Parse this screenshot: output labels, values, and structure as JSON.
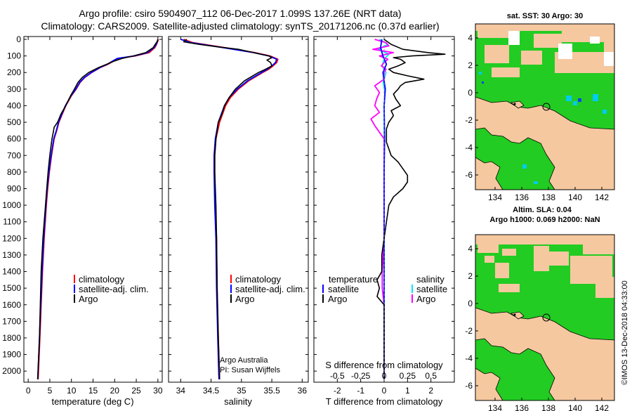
{
  "title": {
    "line1": "Argo profile: csiro 5904907_112 06-Dec-2017 1.099S 137.26E (NRT data)",
    "line2": "Climatology: CARS2009. Satellite-adjusted climatology: synTS_20171206.nc (0.37d earlier)"
  },
  "colors": {
    "climatology": "#ff0000",
    "satellite": "#0000ff",
    "argo": "#000000",
    "sal_sat": "#00e5ff",
    "sal_argo": "#ff00ff",
    "sea_green": "#22cc22",
    "land": "#f5c8a0",
    "cyan": "#00ccee",
    "blue": "#0044ff"
  },
  "depth_axis": {
    "min": 0,
    "max": 2050,
    "ticks": [
      0,
      100,
      200,
      300,
      400,
      500,
      600,
      700,
      800,
      900,
      1000,
      1100,
      1200,
      1300,
      1400,
      1500,
      1600,
      1700,
      1800,
      1900,
      2000
    ]
  },
  "legend": {
    "climatology": "climatology",
    "satellite_adj": "satellite-adj. clim.",
    "argo": "Argo",
    "temperature": "temperature",
    "salinity": "salinity",
    "satellite": "satellite"
  },
  "credit": {
    "line1": "Argo Australia",
    "line2": "PI: Susan Wijffels"
  },
  "chart_data": [
    {
      "type": "line",
      "id": "temperature",
      "xlabel": "temperature (deg C)",
      "xlim": [
        -1,
        31
      ],
      "xticks": [
        0,
        5,
        10,
        15,
        20,
        25,
        30
      ],
      "series": [
        {
          "name": "climatology",
          "depth": [
            0,
            10,
            30,
            50,
            80,
            100,
            115,
            130,
            150,
            170,
            200,
            230,
            260,
            300,
            340,
            400,
            450,
            500,
            550,
            600,
            700,
            800,
            900,
            1000,
            1200,
            1400,
            1600,
            1800,
            2050
          ],
          "values": [
            30.1,
            30.0,
            29.7,
            29.3,
            28.0,
            24.8,
            20.8,
            19.8,
            18.5,
            16.7,
            14.7,
            13.1,
            12.0,
            11.1,
            10.0,
            8.7,
            7.9,
            7.1,
            6.6,
            6.0,
            5.4,
            4.9,
            4.5,
            4.2,
            3.7,
            3.3,
            3.0,
            2.7,
            2.3
          ]
        },
        {
          "name": "satellite-adj. clim.",
          "depth": [
            0,
            10,
            30,
            50,
            80,
            100,
            115,
            130,
            150,
            170,
            200,
            230,
            260,
            300,
            340,
            400,
            450,
            500,
            550,
            600,
            700,
            800,
            900,
            1000,
            1200,
            1400,
            1600,
            1800,
            2050
          ],
          "values": [
            30.0,
            29.9,
            29.6,
            29.1,
            27.6,
            24.5,
            20.6,
            19.6,
            18.3,
            16.6,
            14.6,
            13.0,
            11.9,
            11.0,
            9.9,
            8.6,
            7.8,
            7.0,
            6.5,
            5.9,
            5.3,
            4.8,
            4.4,
            4.1,
            3.6,
            3.2,
            2.9,
            2.6,
            2.2
          ]
        },
        {
          "name": "Argo",
          "depth": [
            0,
            10,
            30,
            50,
            80,
            100,
            115,
            130,
            150,
            170,
            200,
            230,
            260,
            300,
            340,
            400,
            450,
            500,
            530,
            560,
            600,
            700,
            800,
            900,
            1000,
            1200,
            1400,
            1600,
            1800,
            2050
          ],
          "values": [
            30.0,
            29.9,
            29.4,
            28.9,
            27.2,
            24.3,
            21.7,
            20.0,
            18.2,
            16.3,
            14.0,
            12.5,
            11.5,
            10.7,
            9.8,
            8.7,
            7.6,
            6.8,
            6.0,
            5.8,
            5.5,
            5.0,
            4.6,
            4.3,
            4.0,
            3.4,
            3.0,
            2.8,
            2.6,
            2.2
          ]
        }
      ]
    },
    {
      "type": "line",
      "id": "salinity",
      "xlabel": "salinity",
      "xlim": [
        33.8,
        36.1
      ],
      "xticks": [
        34,
        34.5,
        35,
        35.5,
        36
      ],
      "series": [
        {
          "name": "climatology",
          "depth": [
            0,
            20,
            40,
            60,
            80,
            100,
            120,
            140,
            160,
            180,
            200,
            250,
            300,
            350,
            400,
            500,
            600,
            700,
            800,
            1000,
            1200,
            1500,
            1800,
            2050
          ],
          "values": [
            34.05,
            34.2,
            34.55,
            34.9,
            35.22,
            35.47,
            35.6,
            35.58,
            35.52,
            35.45,
            35.35,
            35.12,
            34.95,
            34.82,
            34.74,
            34.64,
            34.58,
            34.56,
            34.56,
            34.57,
            34.59,
            34.6,
            34.62,
            34.64
          ]
        },
        {
          "name": "satellite-adj. clim.",
          "depth": [
            0,
            20,
            40,
            60,
            80,
            100,
            120,
            140,
            160,
            180,
            200,
            250,
            300,
            350,
            400,
            500,
            600,
            700,
            800,
            1000,
            1200,
            1500,
            1800,
            2050
          ],
          "values": [
            34.0,
            34.17,
            34.52,
            34.87,
            35.2,
            35.45,
            35.58,
            35.56,
            35.5,
            35.43,
            35.33,
            35.1,
            34.93,
            34.8,
            34.72,
            34.62,
            34.57,
            34.55,
            34.55,
            34.56,
            34.58,
            34.59,
            34.61,
            34.63
          ]
        },
        {
          "name": "Argo",
          "depth": [
            0,
            15,
            30,
            45,
            60,
            80,
            100,
            110,
            125,
            140,
            160,
            180,
            200,
            250,
            300,
            350,
            400,
            450,
            500,
            600,
            700,
            800,
            1000,
            1200,
            1500,
            1800,
            2050
          ],
          "values": [
            34.1,
            34.05,
            34.3,
            34.6,
            34.95,
            35.2,
            35.45,
            35.5,
            35.42,
            35.48,
            35.5,
            35.4,
            35.28,
            35.05,
            34.9,
            34.8,
            34.72,
            34.68,
            34.62,
            34.58,
            34.56,
            34.56,
            34.58,
            34.59,
            34.6,
            34.62,
            34.64
          ]
        }
      ]
    },
    {
      "type": "line",
      "id": "difference",
      "xlabel": "T difference from climatology",
      "xlabel2": "S difference from climatology",
      "xlim": [
        -3,
        3
      ],
      "xticks": [
        -2,
        -1,
        0,
        1,
        2
      ],
      "s_ticks_labels": [
        "-0.5",
        "-0.25",
        "0",
        "0.25",
        "0.5"
      ],
      "s_ticks_values": [
        -0.5,
        -0.25,
        0,
        0.25,
        0.5
      ],
      "s_scale": 4,
      "series": [
        {
          "name": "T satellite",
          "depth": [
            0,
            50,
            100,
            150,
            200,
            300,
            400,
            600,
            800,
            1200,
            1600,
            2050
          ],
          "values": [
            -0.1,
            -0.15,
            -0.05,
            0.1,
            -0.05,
            0.05,
            0.0,
            0.02,
            0.0,
            0.0,
            0.0,
            0.0
          ]
        },
        {
          "name": "T Argo",
          "depth": [
            0,
            30,
            60,
            80,
            90,
            100,
            110,
            120,
            140,
            160,
            180,
            200,
            220,
            240,
            260,
            280,
            300,
            330,
            360,
            400,
            430,
            460,
            500,
            540,
            580,
            620,
            660,
            700,
            740,
            780,
            820,
            860,
            900,
            950,
            1000,
            1100,
            1200,
            1300,
            1400,
            1450,
            1500,
            1550,
            1600,
            1700,
            1800,
            1900,
            2050
          ],
          "values": [
            0.0,
            0.3,
            0.8,
            1.9,
            2.6,
            1.2,
            0.4,
            0.7,
            0.9,
            0.6,
            0.2,
            0.4,
            1.0,
            1.7,
            0.9,
            0.7,
            0.6,
            0.4,
            0.5,
            0.7,
            0.3,
            0.4,
            0.2,
            0.1,
            0.1,
            0.1,
            0.2,
            0.3,
            0.6,
            0.8,
            1.0,
            1.0,
            0.8,
            0.4,
            0.2,
            0.1,
            0.0,
            -0.1,
            -0.1,
            -0.3,
            -0.2,
            -0.3,
            0.0,
            0.0,
            0.0,
            0.0,
            0.0
          ]
        },
        {
          "name": "S satellite",
          "depth": [
            0,
            30,
            60,
            90,
            120,
            160,
            200,
            260,
            320,
            400,
            500,
            700,
            1000,
            1500,
            2050
          ],
          "values": [
            -0.05,
            0.04,
            -0.06,
            0.05,
            0.0,
            -0.02,
            0.02,
            -0.01,
            0.01,
            0.0,
            0.0,
            0.0,
            0.0,
            0.0,
            0.0
          ]
        },
        {
          "name": "S Argo",
          "depth": [
            0,
            20,
            40,
            60,
            80,
            100,
            120,
            140,
            160,
            180,
            200,
            240,
            280,
            320,
            360,
            400,
            440,
            480,
            520,
            560,
            600,
            700,
            800,
            900,
            1000,
            1200,
            1400,
            1500,
            1600,
            2050
          ],
          "values": [
            -0.1,
            0.02,
            0.05,
            -0.12,
            0.1,
            -0.05,
            0.04,
            0.0,
            -0.03,
            0.02,
            0.0,
            0.0,
            -0.1,
            -0.05,
            -0.08,
            -0.1,
            -0.05,
            -0.14,
            -0.1,
            -0.05,
            0.0,
            0.0,
            0.0,
            0.0,
            0.0,
            0.0,
            -0.02,
            -0.02,
            0.0,
            0.0
          ]
        }
      ]
    }
  ],
  "maps": [
    {
      "title": "sat. SST: 30 Argo: 30",
      "xticks": [
        "134",
        "136",
        "138",
        "140",
        "142"
      ],
      "yticks": [
        "4",
        "2",
        "0",
        "-2",
        "-4",
        "-6"
      ]
    },
    {
      "title_line1": "Altim. SLA: 0.04",
      "title_line2": "Argo h1000: 0.069 h2000: NaN",
      "xticks": [
        "134",
        "136",
        "138",
        "140",
        "142"
      ],
      "yticks": [
        "4",
        "2",
        "0",
        "-2",
        "-4",
        "-6"
      ]
    }
  ],
  "footer": "©IMOS 13-Dec-2018 04:33:00"
}
